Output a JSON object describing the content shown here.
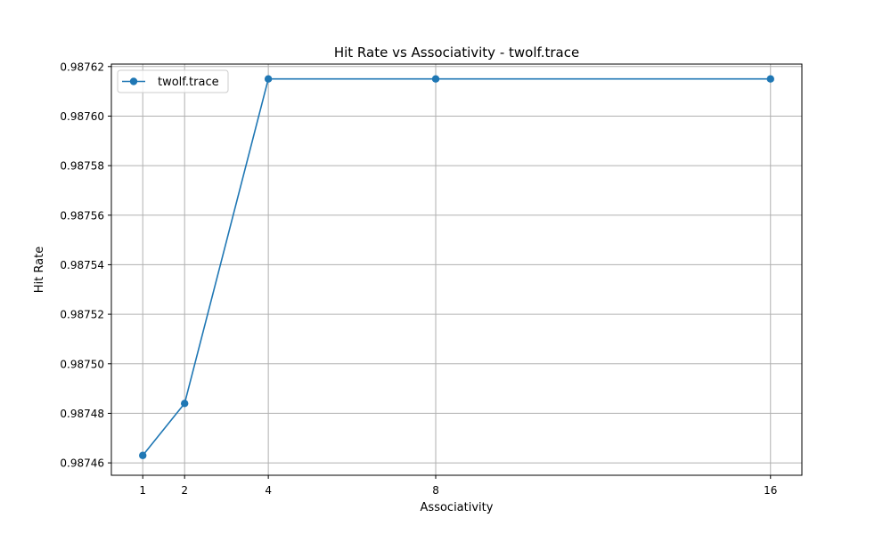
{
  "chart_data": {
    "type": "line",
    "title": "Hit Rate vs Associativity - twolf.trace",
    "xlabel": "Associativity",
    "ylabel": "Hit Rate",
    "x_ticks": [
      1,
      2,
      4,
      8,
      16
    ],
    "y_ticks": [
      "0.98746",
      "0.98748",
      "0.98750",
      "0.98752",
      "0.98754",
      "0.98756",
      "0.98758",
      "0.98760",
      "0.98762"
    ],
    "xlim": [
      0.25,
      16.75
    ],
    "ylim": [
      0.987455,
      0.987621
    ],
    "grid": true,
    "legend": {
      "placement": "top-left"
    },
    "series": [
      {
        "name": "twolf.trace",
        "color": "#1f77b4",
        "marker": "circle",
        "x": [
          1,
          2,
          4,
          8,
          16
        ],
        "y": [
          0.987463,
          0.987484,
          0.987615,
          0.987615,
          0.987615
        ]
      }
    ]
  }
}
